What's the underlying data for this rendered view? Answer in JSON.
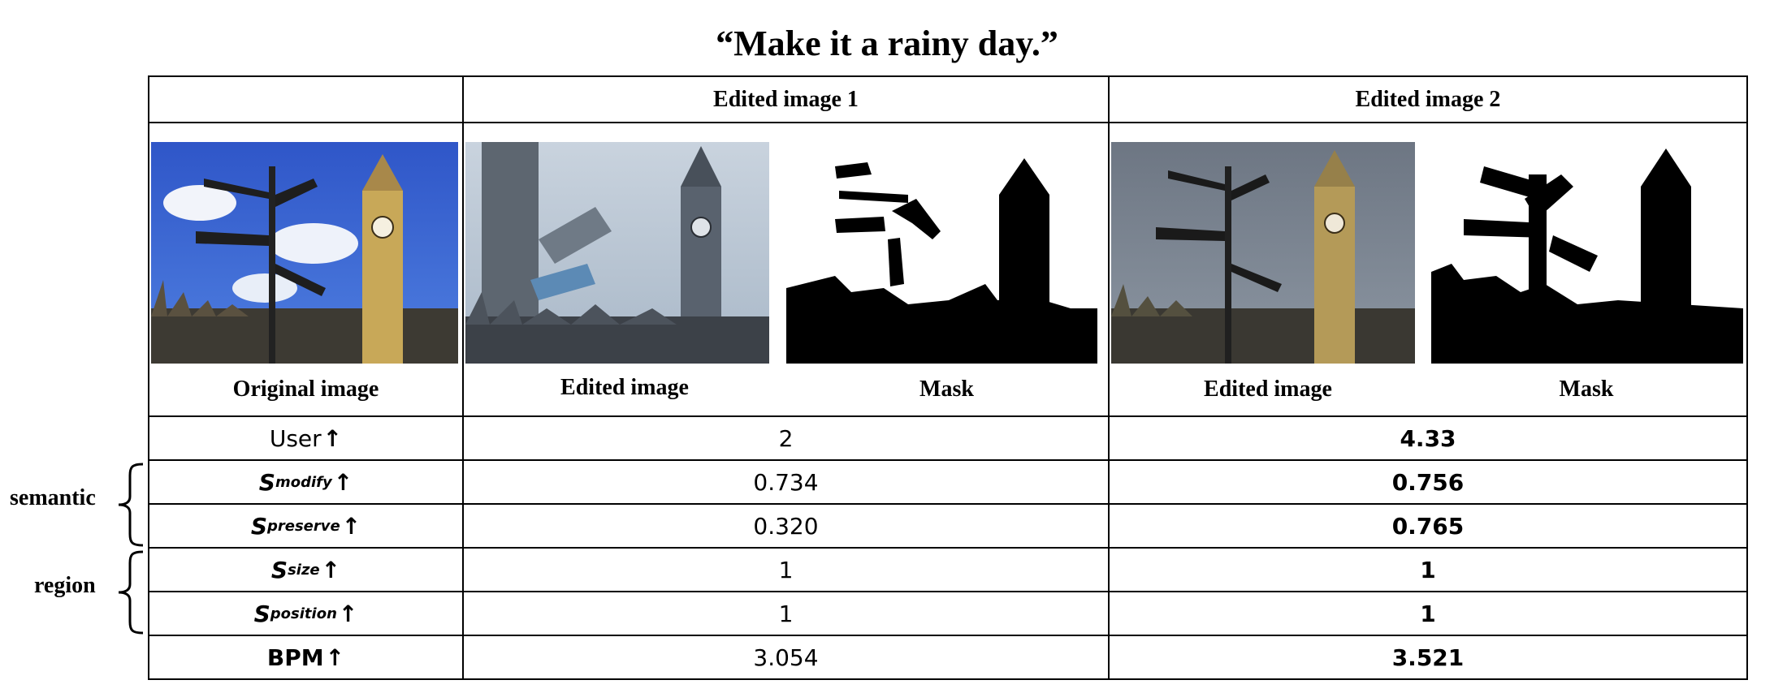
{
  "title": "“Make it a rainy day.”",
  "columns": {
    "edited1": "Edited image 1",
    "edited2": "Edited image 2"
  },
  "image_captions": {
    "original": "Original image",
    "edited1_image": "Edited image",
    "edited1_mask": "Mask",
    "edited2_image": "Edited image",
    "edited2_mask": "Mask"
  },
  "rows": [
    {
      "metric": "User",
      "sub": "",
      "v1": "2",
      "v2": "4.33"
    },
    {
      "metric": "S",
      "sub": "modify",
      "v1": "0.734",
      "v2": "0.756"
    },
    {
      "metric": "S",
      "sub": "preserve",
      "v1": "0.320",
      "v2": "0.765"
    },
    {
      "metric": "S",
      "sub": "size",
      "v1": "1",
      "v2": "1"
    },
    {
      "metric": "S",
      "sub": "position",
      "v1": "1",
      "v2": "1"
    },
    {
      "metric": "BPM",
      "sub": "",
      "v1": "3.054",
      "v2": "3.521"
    }
  ],
  "arrow": "↑",
  "groups": {
    "semantic": "semantic",
    "region": "region"
  }
}
